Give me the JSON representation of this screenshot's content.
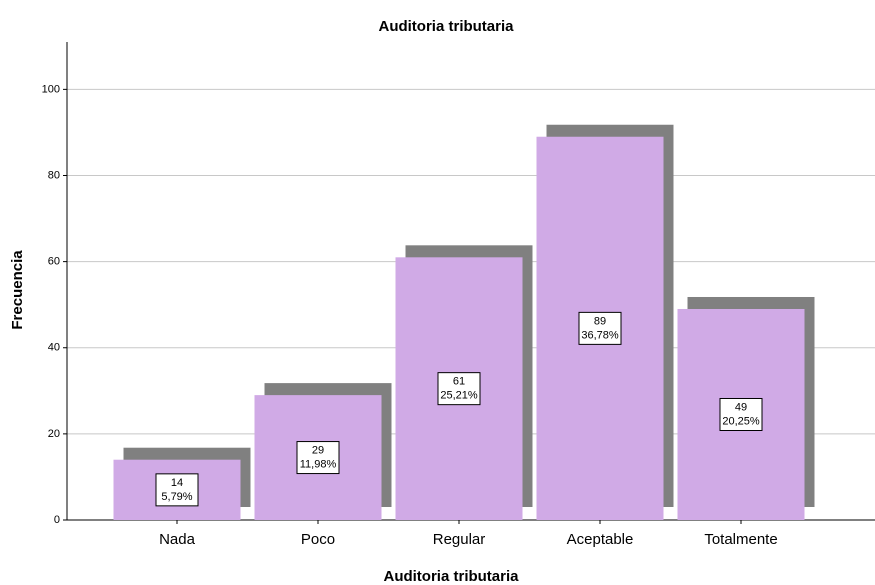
{
  "chart_data": {
    "type": "bar",
    "title": "Auditoria tributaria",
    "x_label": "Auditoria tributaria",
    "y_label": "Frecuencia",
    "categories": [
      "Nada",
      "Poco",
      "Regular",
      "Aceptable",
      "Totalmente"
    ],
    "values": [
      14,
      29,
      61,
      89,
      49
    ],
    "percentages": [
      5.79,
      11.98,
      25.21,
      36.78,
      20.25
    ],
    "percentage_labels": [
      "5,79%",
      "11,98%",
      "25,21%",
      "36,78%",
      "20,25%"
    ],
    "color": "#d0aae6",
    "shadow_color": "#808080",
    "ylim": [
      0,
      111
    ],
    "yticks": [
      0,
      20,
      40,
      60,
      80,
      100
    ],
    "grid": true
  }
}
